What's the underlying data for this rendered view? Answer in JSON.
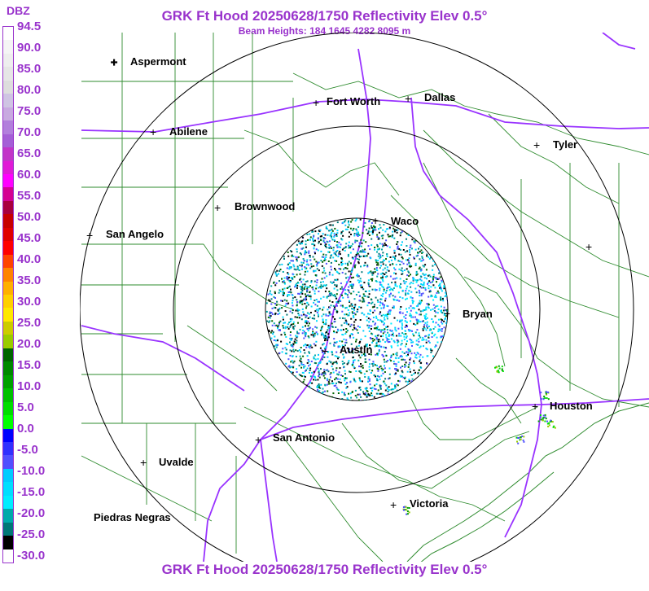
{
  "header": {
    "title": "GRK Ft Hood 20250628/1750 Reflectivity Elev 0.5°",
    "subtitle": "Beam Heights: 184 1645 4282 8095 m",
    "footer_title": "GRK Ft Hood 20250628/1750 Reflectivity Elev 0.5°"
  },
  "legend": {
    "unit": "DBZ",
    "labels": [
      "94.5",
      "90.0",
      "85.0",
      "80.0",
      "75.0",
      "70.0",
      "65.0",
      "60.0",
      "55.0",
      "50.0",
      "45.0",
      "40.0",
      "35.0",
      "30.0",
      "25.0",
      "20.0",
      "15.0",
      "10.0",
      "5.0",
      "0.0",
      "-5.0",
      "-10.0",
      "-15.0",
      "-20.0",
      "-25.0",
      "-30.0"
    ],
    "colors": [
      "#ffffff",
      "#f5f5f5",
      "#eeeeee",
      "#e6e6e6",
      "#dddddd",
      "#cfc4e3",
      "#c8a9e0",
      "#b27fdc",
      "#a45fd6",
      "#c234c8",
      "#e01ad6",
      "#ff00ff",
      "#d40092",
      "#a8003e",
      "#c70000",
      "#e00000",
      "#ff0000",
      "#ff4400",
      "#ff8400",
      "#ffb000",
      "#ffd000",
      "#ffe800",
      "#cccc00",
      "#9acc00",
      "#006400",
      "#008800",
      "#00a000",
      "#00c000",
      "#00dd00",
      "#00ff00",
      "#0000ff",
      "#3030ff",
      "#5050ff",
      "#00ccff",
      "#00dfff",
      "#00eeff",
      "#00aaaa",
      "#007777",
      "#000000",
      "#ffffff"
    ]
  },
  "map": {
    "cities": [
      {
        "name": "Aspermont"
      },
      {
        "name": "Fort Worth"
      },
      {
        "name": "Dallas"
      },
      {
        "name": "Abilene"
      },
      {
        "name": "Tyler"
      },
      {
        "name": "Brownwood"
      },
      {
        "name": "Waco"
      },
      {
        "name": "San Angelo"
      },
      {
        "name": "Bryan"
      },
      {
        "name": "Austin"
      },
      {
        "name": "Houston"
      },
      {
        "name": "San Antonio"
      },
      {
        "name": "Uvalde"
      },
      {
        "name": "Victoria"
      },
      {
        "name": "Piedras Negras"
      }
    ],
    "range_rings": 3,
    "colors": {
      "county_lines": "#2e8b2e",
      "highways": "#9933ff",
      "rings": "#000000",
      "title": "#9933cc"
    }
  }
}
